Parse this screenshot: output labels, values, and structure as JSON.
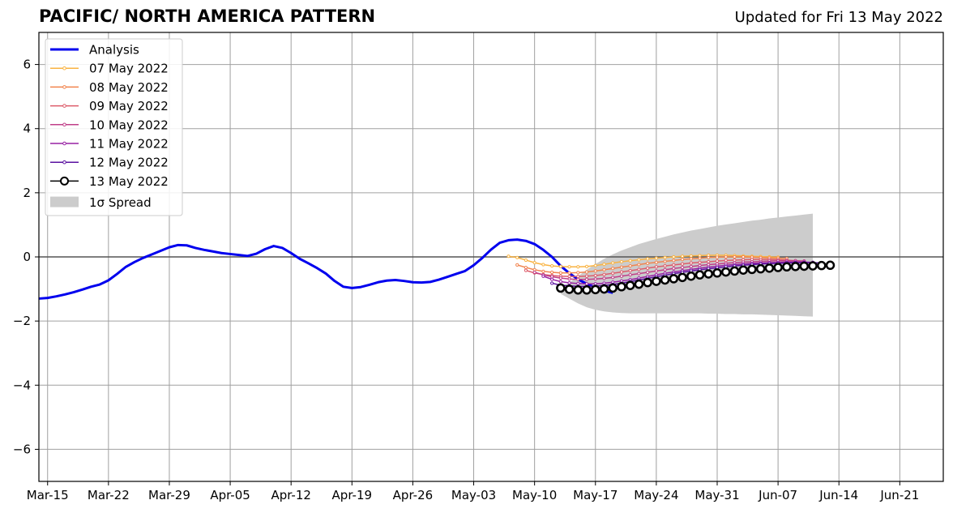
{
  "chart_data": {
    "type": "line",
    "title": "PACIFIC/ NORTH AMERICA PATTERN",
    "subtitle": "Updated for Fri 13 May 2022",
    "xlabel": "",
    "ylabel": "",
    "ylim": [
      -7,
      7
    ],
    "xlim": [
      "2022-03-14",
      "2022-06-26"
    ],
    "x_ticks": [
      {
        "date": "2022-03-15",
        "label": "Mar-15"
      },
      {
        "date": "2022-03-22",
        "label": "Mar-22"
      },
      {
        "date": "2022-03-29",
        "label": "Mar-29"
      },
      {
        "date": "2022-04-05",
        "label": "Apr-05"
      },
      {
        "date": "2022-04-12",
        "label": "Apr-12"
      },
      {
        "date": "2022-04-19",
        "label": "Apr-19"
      },
      {
        "date": "2022-04-26",
        "label": "Apr-26"
      },
      {
        "date": "2022-05-03",
        "label": "May-03"
      },
      {
        "date": "2022-05-10",
        "label": "May-10"
      },
      {
        "date": "2022-05-17",
        "label": "May-17"
      },
      {
        "date": "2022-05-24",
        "label": "May-24"
      },
      {
        "date": "2022-05-31",
        "label": "May-31"
      },
      {
        "date": "2022-06-07",
        "label": "Jun-07"
      },
      {
        "date": "2022-06-14",
        "label": "Jun-14"
      },
      {
        "date": "2022-06-21",
        "label": "Jun-21"
      }
    ],
    "y_ticks": [
      {
        "value": 6,
        "label": "6"
      },
      {
        "value": 4,
        "label": "4"
      },
      {
        "value": 2,
        "label": "2"
      },
      {
        "value": 0,
        "label": "0"
      },
      {
        "value": -2,
        "label": "−2"
      },
      {
        "value": -4,
        "label": "−4"
      },
      {
        "value": -6,
        "label": "−6"
      }
    ],
    "grid": true,
    "legend_position": "top-left",
    "analysis": {
      "name": "Analysis",
      "color": "#0000ee",
      "start": "2022-03-14",
      "values": [
        -1.3,
        -1.28,
        -1.23,
        -1.17,
        -1.1,
        -1.02,
        -0.93,
        -0.86,
        -0.73,
        -0.53,
        -0.31,
        -0.16,
        -0.03,
        0.08,
        0.19,
        0.3,
        0.37,
        0.36,
        0.28,
        0.22,
        0.17,
        0.12,
        0.09,
        0.06,
        0.03,
        0.1,
        0.24,
        0.34,
        0.28,
        0.12,
        -0.06,
        -0.2,
        -0.35,
        -0.52,
        -0.75,
        -0.93,
        -0.97,
        -0.94,
        -0.87,
        -0.79,
        -0.74,
        -0.72,
        -0.75,
        -0.79,
        -0.8,
        -0.78,
        -0.71,
        -0.62,
        -0.53,
        -0.44,
        -0.26,
        -0.03,
        0.23,
        0.44,
        0.52,
        0.54,
        0.5,
        0.4,
        0.22,
        0.0,
        -0.28,
        -0.51,
        -0.7,
        -0.84,
        -0.96,
        -1.05,
        -1.12
      ]
    },
    "forecasts": [
      {
        "name": "07 May 2022",
        "color": "#f9b342",
        "start": "2022-05-07",
        "values": [
          0.02,
          -0.02,
          -0.1,
          -0.18,
          -0.24,
          -0.28,
          -0.3,
          -0.31,
          -0.31,
          -0.3,
          -0.27,
          -0.23,
          -0.19,
          -0.15,
          -0.12,
          -0.09,
          -0.06,
          -0.04,
          -0.02,
          0.0,
          0.02,
          0.03,
          0.04,
          0.05,
          0.05,
          0.05,
          0.04,
          0.03,
          0.02,
          0.01,
          0.0,
          -0.01
        ]
      },
      {
        "name": "08 May 2022",
        "color": "#f1844e",
        "start": "2022-05-08",
        "values": [
          -0.25,
          -0.33,
          -0.4,
          -0.45,
          -0.48,
          -0.5,
          -0.5,
          -0.49,
          -0.47,
          -0.44,
          -0.4,
          -0.36,
          -0.32,
          -0.28,
          -0.24,
          -0.2,
          -0.17,
          -0.14,
          -0.11,
          -0.08,
          -0.06,
          -0.04,
          -0.02,
          -0.01,
          0.0,
          0.0,
          0.0,
          -0.01,
          -0.02,
          -0.03,
          -0.04,
          -0.05
        ]
      },
      {
        "name": "09 May 2022",
        "color": "#dd5c6a",
        "start": "2022-05-09",
        "values": [
          -0.42,
          -0.5,
          -0.55,
          -0.58,
          -0.6,
          -0.61,
          -0.61,
          -0.6,
          -0.58,
          -0.55,
          -0.51,
          -0.47,
          -0.43,
          -0.39,
          -0.35,
          -0.31,
          -0.28,
          -0.25,
          -0.22,
          -0.19,
          -0.17,
          -0.15,
          -0.13,
          -0.11,
          -0.1,
          -0.09,
          -0.08,
          -0.08,
          -0.08,
          -0.09,
          -0.1,
          -0.12
        ]
      },
      {
        "name": "10 May 2022",
        "color": "#c03f88",
        "start": "2022-05-10",
        "values": [
          -0.48,
          -0.56,
          -0.62,
          -0.66,
          -0.69,
          -0.7,
          -0.7,
          -0.69,
          -0.67,
          -0.64,
          -0.6,
          -0.56,
          -0.52,
          -0.48,
          -0.44,
          -0.4,
          -0.36,
          -0.33,
          -0.3,
          -0.27,
          -0.24,
          -0.22,
          -0.2,
          -0.18,
          -0.16,
          -0.15,
          -0.14,
          -0.13,
          -0.12,
          -0.12,
          -0.12,
          -0.13
        ]
      },
      {
        "name": "11 May 2022",
        "color": "#9721a3",
        "start": "2022-05-11",
        "values": [
          -0.6,
          -0.7,
          -0.77,
          -0.81,
          -0.83,
          -0.84,
          -0.84,
          -0.82,
          -0.79,
          -0.75,
          -0.71,
          -0.66,
          -0.61,
          -0.56,
          -0.51,
          -0.47,
          -0.43,
          -0.39,
          -0.35,
          -0.32,
          -0.29,
          -0.26,
          -0.24,
          -0.22,
          -0.2,
          -0.19,
          -0.18,
          -0.17,
          -0.16,
          -0.16,
          -0.16,
          -0.17
        ]
      },
      {
        "name": "12 May 2022",
        "color": "#5a10a0",
        "start": "2022-05-12",
        "values": [
          -0.82,
          -0.88,
          -0.9,
          -0.92,
          -0.92,
          -0.91,
          -0.89,
          -0.86,
          -0.82,
          -0.77,
          -0.72,
          -0.67,
          -0.62,
          -0.57,
          -0.52,
          -0.48,
          -0.44,
          -0.4,
          -0.37,
          -0.34,
          -0.31,
          -0.28,
          -0.26,
          -0.24,
          -0.22,
          -0.21,
          -0.2,
          -0.19,
          -0.18,
          -0.18,
          -0.18,
          -0.19
        ]
      },
      {
        "name": "13 May 2022",
        "color": "#000000",
        "marker": "open-circle",
        "start": "2022-05-13",
        "values": [
          -0.97,
          -1.01,
          -1.03,
          -1.03,
          -1.02,
          -1.0,
          -0.97,
          -0.93,
          -0.89,
          -0.85,
          -0.8,
          -0.76,
          -0.72,
          -0.68,
          -0.64,
          -0.6,
          -0.56,
          -0.53,
          -0.5,
          -0.47,
          -0.44,
          -0.41,
          -0.39,
          -0.37,
          -0.35,
          -0.33,
          -0.31,
          -0.3,
          -0.29,
          -0.28,
          -0.27,
          -0.26
        ]
      }
    ],
    "spread": {
      "name": "1σ Spread",
      "color": "#cccccc",
      "start": "2022-05-13",
      "upper": [
        -1.0,
        -0.8,
        -0.6,
        -0.4,
        -0.22,
        -0.06,
        0.08,
        0.2,
        0.3,
        0.4,
        0.48,
        0.56,
        0.63,
        0.7,
        0.76,
        0.82,
        0.87,
        0.92,
        0.97,
        1.01,
        1.05,
        1.09,
        1.13,
        1.16,
        1.2,
        1.23,
        1.26,
        1.29,
        1.32,
        1.35
      ],
      "lower": [
        -1.15,
        -1.3,
        -1.45,
        -1.57,
        -1.65,
        -1.7,
        -1.73,
        -1.75,
        -1.76,
        -1.76,
        -1.76,
        -1.76,
        -1.76,
        -1.76,
        -1.76,
        -1.76,
        -1.76,
        -1.77,
        -1.77,
        -1.78,
        -1.78,
        -1.79,
        -1.79,
        -1.8,
        -1.81,
        -1.82,
        -1.83,
        -1.84,
        -1.85,
        -1.86
      ]
    }
  }
}
